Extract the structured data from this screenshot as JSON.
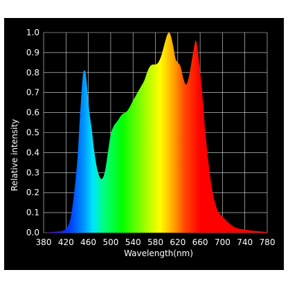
{
  "chart_data": {
    "type": "area",
    "title": "",
    "xlabel": "Wavelength(nm)",
    "ylabel": "Relative intensity",
    "xlim": [
      380,
      780
    ],
    "ylim": [
      0,
      1.0
    ],
    "xticks": [
      380,
      420,
      460,
      500,
      540,
      580,
      620,
      660,
      700,
      740,
      780
    ],
    "yticks": [
      0.0,
      0.1,
      0.2,
      0.3,
      0.4,
      0.5,
      0.6,
      0.7,
      0.8,
      0.9,
      1.0
    ],
    "grid": true,
    "background": "#000000",
    "fill": "visible-spectrum gradient",
    "series": [
      {
        "x": [
          380,
          400,
          420,
          430,
          440,
          445,
          450,
          453,
          455,
          458,
          462,
          466,
          470,
          475,
          480,
          485,
          490,
          495,
          500,
          505,
          510,
          515,
          520,
          530,
          540,
          550,
          560,
          565,
          570,
          575,
          580,
          585,
          590,
          595,
          600,
          603,
          605,
          608,
          612,
          616,
          620,
          625,
          630,
          635,
          640,
          645,
          650,
          652,
          655,
          658,
          662,
          666,
          670,
          680,
          690,
          700,
          720,
          740,
          760,
          780
        ],
        "y": [
          0.0,
          0.005,
          0.02,
          0.1,
          0.35,
          0.58,
          0.78,
          0.81,
          0.8,
          0.72,
          0.6,
          0.52,
          0.42,
          0.33,
          0.28,
          0.27,
          0.31,
          0.4,
          0.49,
          0.53,
          0.55,
          0.57,
          0.59,
          0.61,
          0.66,
          0.71,
          0.76,
          0.8,
          0.83,
          0.84,
          0.84,
          0.85,
          0.88,
          0.93,
          0.98,
          0.998,
          1.0,
          0.98,
          0.93,
          0.87,
          0.85,
          0.83,
          0.77,
          0.74,
          0.78,
          0.86,
          0.94,
          0.96,
          0.93,
          0.85,
          0.75,
          0.62,
          0.48,
          0.24,
          0.12,
          0.08,
          0.03,
          0.015,
          0.008,
          0.003
        ]
      }
    ]
  }
}
